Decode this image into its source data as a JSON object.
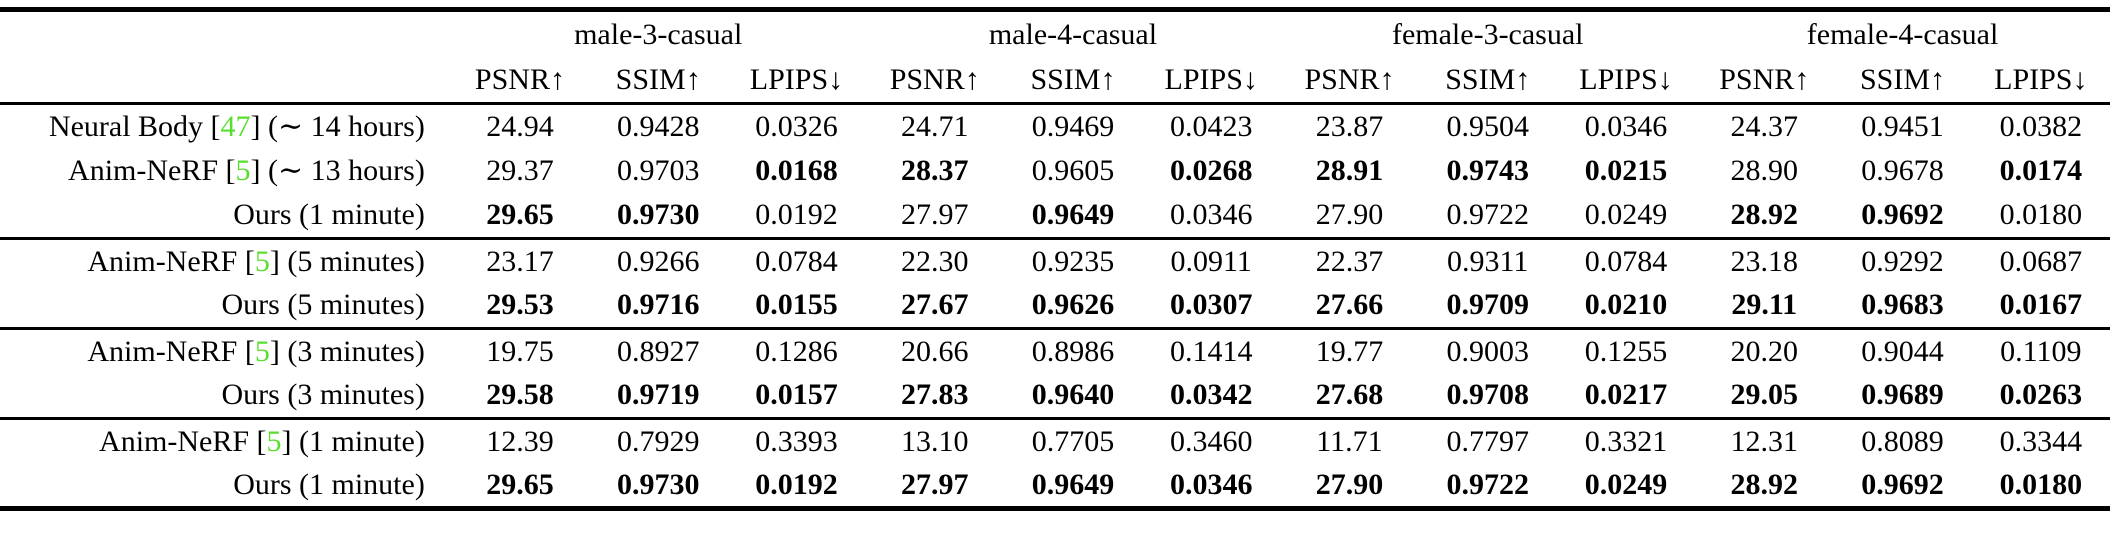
{
  "colors": {
    "citation_green": "#58DF2E",
    "text": "#000000",
    "rule": "#000000",
    "background": "#ffffff"
  },
  "table": {
    "subjects": [
      "male-3-casual",
      "male-4-casual",
      "female-3-casual",
      "female-4-casual"
    ],
    "metrics": [
      "PSNR↑",
      "SSIM↑",
      "LPIPS↓"
    ],
    "groups": [
      {
        "rows": [
          {
            "label": {
              "prefix": "Neural Body [",
              "cite": "47",
              "suffix": "] (∼ 14 hours)"
            },
            "values": [
              "24.94",
              "0.9428",
              "0.0326",
              "24.71",
              "0.9469",
              "0.0423",
              "23.87",
              "0.9504",
              "0.0346",
              "24.37",
              "0.9451",
              "0.0382"
            ],
            "bold": [
              false,
              false,
              false,
              false,
              false,
              false,
              false,
              false,
              false,
              false,
              false,
              false
            ]
          },
          {
            "label": {
              "prefix": "Anim-NeRF [",
              "cite": "5",
              "suffix": "] (∼ 13 hours)"
            },
            "values": [
              "29.37",
              "0.9703",
              "0.0168",
              "28.37",
              "0.9605",
              "0.0268",
              "28.91",
              "0.9743",
              "0.0215",
              "28.90",
              "0.9678",
              "0.0174"
            ],
            "bold": [
              false,
              false,
              true,
              true,
              false,
              true,
              true,
              true,
              true,
              false,
              false,
              true
            ]
          },
          {
            "label": {
              "prefix": "Ours (1 minute)",
              "cite": null,
              "suffix": ""
            },
            "values": [
              "29.65",
              "0.9730",
              "0.0192",
              "27.97",
              "0.9649",
              "0.0346",
              "27.90",
              "0.9722",
              "0.0249",
              "28.92",
              "0.9692",
              "0.0180"
            ],
            "bold": [
              true,
              true,
              false,
              false,
              true,
              false,
              false,
              false,
              false,
              true,
              true,
              false
            ]
          }
        ]
      },
      {
        "rows": [
          {
            "label": {
              "prefix": "Anim-NeRF [",
              "cite": "5",
              "suffix": "] (5 minutes)"
            },
            "values": [
              "23.17",
              "0.9266",
              "0.0784",
              "22.30",
              "0.9235",
              "0.0911",
              "22.37",
              "0.9311",
              "0.0784",
              "23.18",
              "0.9292",
              "0.0687"
            ],
            "bold": [
              false,
              false,
              false,
              false,
              false,
              false,
              false,
              false,
              false,
              false,
              false,
              false
            ]
          },
          {
            "label": {
              "prefix": "Ours (5 minutes)",
              "cite": null,
              "suffix": ""
            },
            "values": [
              "29.53",
              "0.9716",
              "0.0155",
              "27.67",
              "0.9626",
              "0.0307",
              "27.66",
              "0.9709",
              "0.0210",
              "29.11",
              "0.9683",
              "0.0167"
            ],
            "bold": [
              true,
              true,
              true,
              true,
              true,
              true,
              true,
              true,
              true,
              true,
              true,
              true
            ]
          }
        ]
      },
      {
        "rows": [
          {
            "label": {
              "prefix": "Anim-NeRF [",
              "cite": "5",
              "suffix": "] (3 minutes)"
            },
            "values": [
              "19.75",
              "0.8927",
              "0.1286",
              "20.66",
              "0.8986",
              "0.1414",
              "19.77",
              "0.9003",
              "0.1255",
              "20.20",
              "0.9044",
              "0.1109"
            ],
            "bold": [
              false,
              false,
              false,
              false,
              false,
              false,
              false,
              false,
              false,
              false,
              false,
              false
            ]
          },
          {
            "label": {
              "prefix": "Ours (3 minutes)",
              "cite": null,
              "suffix": ""
            },
            "values": [
              "29.58",
              "0.9719",
              "0.0157",
              "27.83",
              "0.9640",
              "0.0342",
              "27.68",
              "0.9708",
              "0.0217",
              "29.05",
              "0.9689",
              "0.0263"
            ],
            "bold": [
              true,
              true,
              true,
              true,
              true,
              true,
              true,
              true,
              true,
              true,
              true,
              true
            ]
          }
        ]
      },
      {
        "rows": [
          {
            "label": {
              "prefix": "Anim-NeRF [",
              "cite": "5",
              "suffix": "] (1 minute)"
            },
            "values": [
              "12.39",
              "0.7929",
              "0.3393",
              "13.10",
              "0.7705",
              "0.3460",
              "11.71",
              "0.7797",
              "0.3321",
              "12.31",
              "0.8089",
              "0.3344"
            ],
            "bold": [
              false,
              false,
              false,
              false,
              false,
              false,
              false,
              false,
              false,
              false,
              false,
              false
            ]
          },
          {
            "label": {
              "prefix": "Ours (1 minute)",
              "cite": null,
              "suffix": ""
            },
            "values": [
              "29.65",
              "0.9730",
              "0.0192",
              "27.97",
              "0.9649",
              "0.0346",
              "27.90",
              "0.9722",
              "0.0249",
              "28.92",
              "0.9692",
              "0.0180"
            ],
            "bold": [
              true,
              true,
              true,
              true,
              true,
              true,
              true,
              true,
              true,
              true,
              true,
              true
            ]
          }
        ]
      }
    ]
  }
}
